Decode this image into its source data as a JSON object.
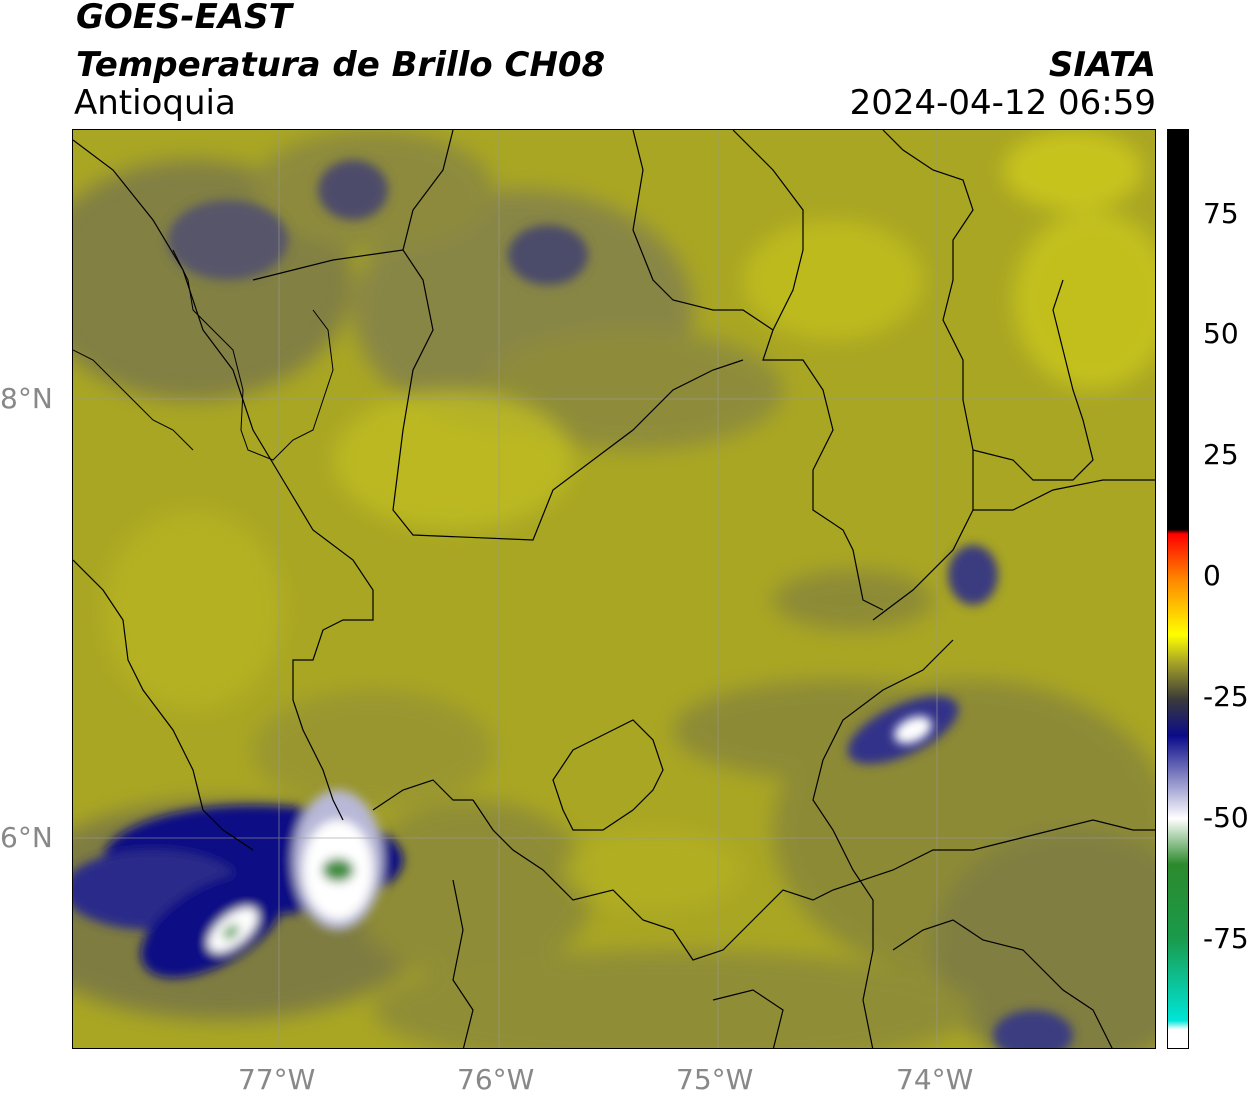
{
  "header": {
    "satellite": "GOES-EAST",
    "product": "Temperatura de Brillo CH08",
    "region": "Antioquia",
    "brand": "SIATA",
    "timestamp": "2024-04-12 06:59"
  },
  "map": {
    "lat_labels": [
      "8°N",
      "6°N"
    ],
    "lon_labels": [
      "77°W",
      "76°W",
      "75°W",
      "74°W"
    ],
    "background_color": "#a7a426"
  },
  "colorbar": {
    "ticks": [
      "75",
      "50",
      "25",
      "0",
      "-25",
      "-50",
      "-75"
    ],
    "gradient_colors": [
      "#000000",
      "#ff0000",
      "#ff8800",
      "#ffff00",
      "#a7a426",
      "#3a3a3a",
      "#0b0b8a",
      "#ffffff",
      "#2c8a2c",
      "#00e5d8",
      "#ffffff"
    ]
  }
}
